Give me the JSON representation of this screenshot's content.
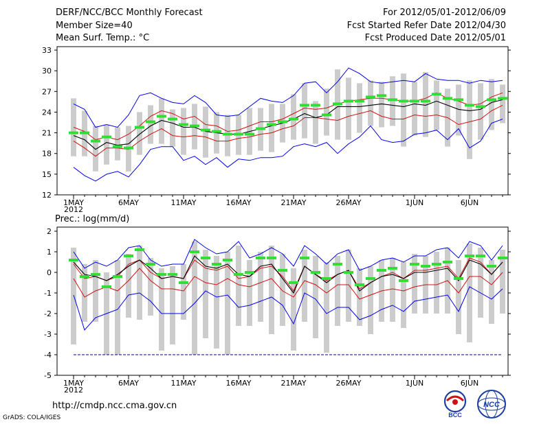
{
  "header": {
    "title": "DERF/NCC/BCC Monthly Forecast",
    "member_size": "Member Size=40",
    "variable": "Mean Surf. Temp.: °C",
    "period": "For 2012/05/01-2012/06/09",
    "started": "Fcst Started Refer Date 2012/04/30",
    "produced": "Fcst Produced Date 2012/05/01"
  },
  "colors": {
    "envelope": "#0000ee",
    "quartile": "#d01010",
    "median": "#000000",
    "ensemble_mean_marker": "#33dd33",
    "range_bar": "#cccccc",
    "reference_line": "#000080"
  },
  "footer": {
    "url": "http://cmdp.ncc.cma.gov.cn",
    "credit": "GrADS: COLA/IGES",
    "logo_left_text": "BCC",
    "logo_right_text": "NCC"
  },
  "chart_data": [
    {
      "type": "line",
      "title": "Mean Surf. Temp.: °C",
      "xlabel": "",
      "ylabel": "",
      "x_tick_labels": [
        "1MAY",
        "6MAY",
        "11MAY",
        "16MAY",
        "21MAY",
        "26MAY",
        "1JUN",
        "6JUN"
      ],
      "x_tick_days": [
        1,
        6,
        11,
        16,
        21,
        26,
        32,
        37
      ],
      "year_label": "2012",
      "ylim": [
        12,
        33.5
      ],
      "y_ticks": [
        12,
        15,
        18,
        21,
        24,
        27,
        30,
        33
      ],
      "days": [
        1,
        2,
        3,
        4,
        5,
        6,
        7,
        8,
        9,
        10,
        11,
        12,
        13,
        14,
        15,
        16,
        17,
        18,
        19,
        20,
        21,
        22,
        23,
        24,
        25,
        26,
        27,
        28,
        29,
        30,
        31,
        32,
        33,
        34,
        35,
        36,
        37,
        38,
        39,
        40
      ],
      "series": [
        {
          "name": "max",
          "values": [
            16,
            14.8,
            14,
            15,
            15.4,
            14.6,
            16.4,
            18.6,
            19,
            19,
            17,
            17.6,
            16.4,
            17.4,
            16,
            17.2,
            17,
            17.4,
            17.4,
            17.6,
            19,
            19.4,
            19,
            19.6,
            18,
            19.4,
            20.4,
            22,
            20,
            19.6,
            19.8,
            20.8,
            21,
            21.4,
            20,
            21.6,
            18.8,
            19.8,
            22.4,
            23
          ]
        },
        {
          "name": "q3",
          "values": [
            19.8,
            18.8,
            17.6,
            18.8,
            18.8,
            18.6,
            19.8,
            20.8,
            21.6,
            20.6,
            20.4,
            20.6,
            20.4,
            19.8,
            19.8,
            20.2,
            20.4,
            20.8,
            21,
            21.6,
            22,
            23.2,
            23.2,
            23,
            22.8,
            23.4,
            23.8,
            24.2,
            23.4,
            23,
            23,
            23.6,
            23.4,
            23.6,
            23.2,
            22.2,
            22.6,
            23,
            24.2,
            25
          ]
        },
        {
          "name": "median",
          "values": [
            20.6,
            20,
            18.6,
            19.6,
            19.2,
            19.4,
            20.8,
            22,
            22.8,
            22.4,
            21.8,
            21.8,
            21.2,
            21,
            20.8,
            20.8,
            21.2,
            21.6,
            22,
            22.4,
            23,
            23.8,
            23.2,
            23.6,
            24.8,
            24.8,
            24.8,
            25,
            25.2,
            25,
            24.8,
            25.2,
            25,
            25.6,
            25,
            24.4,
            24.2,
            24.4,
            25.4,
            25.8
          ]
        },
        {
          "name": "q1",
          "values": [
            21.8,
            21.2,
            20,
            20.4,
            20,
            20.8,
            22,
            23.4,
            24.2,
            23.8,
            23,
            23.4,
            22.2,
            22,
            21.2,
            21.4,
            22,
            22.6,
            22.6,
            23,
            23.8,
            24.6,
            24.4,
            24.6,
            25.2,
            25.6,
            25.8,
            26,
            26,
            25.8,
            25.6,
            25.6,
            26,
            26.8,
            26,
            25.6,
            25,
            25.2,
            26.2,
            26.8
          ]
        },
        {
          "name": "min",
          "values": [
            25.2,
            24.4,
            21.8,
            22.2,
            21.8,
            23.6,
            26.4,
            26.8,
            26,
            25.4,
            25.2,
            26.4,
            25.4,
            23.6,
            23.4,
            23.6,
            24.8,
            26,
            25.6,
            25.4,
            26.4,
            28.2,
            28.4,
            26.8,
            28.4,
            30.4,
            29.6,
            28.4,
            28.2,
            28.4,
            28.6,
            28.4,
            29.6,
            28.8,
            28.6,
            28.6,
            28.2,
            28.6,
            28.4,
            28.6
          ]
        },
        {
          "name": "ensemble_mean",
          "values": [
            21,
            21,
            19.8,
            20.4,
            19,
            18.8,
            21.8,
            22.6,
            23.4,
            23,
            22.2,
            22,
            21.4,
            21.2,
            20.8,
            20.8,
            20.8,
            21.6,
            22.2,
            22.6,
            23,
            25,
            25,
            23.6,
            25.2,
            25.6,
            25.6,
            26.2,
            26.4,
            25.8,
            25.6,
            25.6,
            25.6,
            26.6,
            26,
            25.8,
            25,
            24.8,
            25.8,
            26
          ]
        },
        {
          "name": "range_bar_low",
          "values": [
            17.6,
            17.6,
            15.4,
            16.4,
            17,
            15.4,
            17.8,
            19.4,
            19.4,
            19,
            17.8,
            18.6,
            17.4,
            18,
            17.6,
            17.8,
            17.8,
            18.4,
            18.2,
            19.6,
            20,
            20.2,
            19.4,
            20.6,
            20,
            20,
            21,
            22,
            21.8,
            22,
            19,
            20.6,
            20.4,
            21.4,
            19,
            20.6,
            17.2,
            20,
            21.4,
            22.4
          ]
        },
        {
          "name": "range_bar_high",
          "values": [
            26,
            24.2,
            22,
            22.2,
            21.8,
            22,
            24,
            25,
            26,
            24.4,
            24.6,
            25.2,
            24.8,
            24,
            23.6,
            23.6,
            24.6,
            24.6,
            25.2,
            25.2,
            26.6,
            28.2,
            25.6,
            27.4,
            30.2,
            29,
            28.2,
            28.6,
            28.4,
            29.2,
            29.6,
            28.4,
            29.8,
            28.6,
            27.4,
            28,
            28.6,
            28.2,
            28.8,
            28
          ]
        }
      ]
    },
    {
      "type": "line",
      "title": "Prec.: log(mm/d)",
      "xlabel": "",
      "ylabel": "",
      "x_tick_labels": [
        "1MAY",
        "6MAY",
        "11MAY",
        "16MAY",
        "21MAY",
        "26MAY",
        "1JUN",
        "6JUN"
      ],
      "x_tick_days": [
        1,
        6,
        11,
        16,
        21,
        26,
        32,
        37
      ],
      "year_label": "2012",
      "ylim": [
        -5,
        2.2
      ],
      "y_ticks": [
        -5,
        -4,
        -3,
        -2,
        -1,
        0,
        1,
        2
      ],
      "reference_line": -4,
      "days": [
        1,
        2,
        3,
        4,
        5,
        6,
        7,
        8,
        9,
        10,
        11,
        12,
        13,
        14,
        15,
        16,
        17,
        18,
        19,
        20,
        21,
        22,
        23,
        24,
        25,
        26,
        27,
        28,
        29,
        30,
        31,
        32,
        33,
        34,
        35,
        36,
        37,
        38,
        39,
        40
      ],
      "series": [
        {
          "name": "max",
          "values": [
            1,
            0.2,
            0.5,
            0.3,
            0.6,
            1.2,
            1.3,
            0.6,
            0.3,
            0.4,
            0.4,
            1.6,
            1.2,
            0.9,
            1,
            1.5,
            0.7,
            0.9,
            1.2,
            0.9,
            0.3,
            1.3,
            0.9,
            0.4,
            0.9,
            1.1,
            0.1,
            0.3,
            0.6,
            0.7,
            0.5,
            0.8,
            0.8,
            1.1,
            1.2,
            0.7,
            1.5,
            1.3,
            0.6,
            1.3
          ]
        },
        {
          "name": "q3",
          "values": [
            0.4,
            -0.3,
            -0.2,
            -0.4,
            -0.2,
            0.4,
            0.6,
            0,
            -0.3,
            -0.2,
            -0.3,
            0.6,
            0.2,
            0.1,
            0.3,
            -0.3,
            -0.2,
            0.2,
            0.3,
            -0.2,
            -0.9,
            0.3,
            -0.1,
            -0.4,
            -0.1,
            0.1,
            -0.8,
            -0.5,
            -0.2,
            0,
            -0.3,
            0.1,
            0.1,
            0.2,
            0.3,
            -0.3,
            0.7,
            0.5,
            -0.1,
            0.5
          ]
        },
        {
          "name": "median",
          "values": [
            0.5,
            -0.1,
            -0.2,
            -0.4,
            -0.1,
            0.3,
            0.6,
            0.2,
            -0.3,
            -0.2,
            -0.3,
            0.8,
            0.3,
            0.2,
            0.4,
            -0.1,
            -0.2,
            0.3,
            0.4,
            -0.3,
            -1,
            0.3,
            -0.1,
            -0.5,
            -0.1,
            0.1,
            -0.9,
            -0.5,
            -0.2,
            -0.1,
            -0.3,
            0,
            0,
            0.1,
            0.2,
            -0.4,
            0.6,
            0.4,
            -0.1,
            0.5
          ]
        },
        {
          "name": "q1",
          "values": [
            -0.3,
            -1.2,
            -0.9,
            -0.7,
            -0.9,
            -0.4,
            0.2,
            -0.4,
            -0.8,
            -0.8,
            -0.9,
            -0.2,
            -0.5,
            -0.6,
            -0.3,
            -0.6,
            -0.7,
            -0.5,
            -0.3,
            -0.9,
            -1.2,
            -0.4,
            -0.6,
            -1,
            -0.6,
            -0.6,
            -1.3,
            -1.1,
            -0.9,
            -0.8,
            -0.9,
            -0.7,
            -0.6,
            -0.6,
            -0.4,
            -1,
            -0.2,
            -0.2,
            -0.6,
            0
          ]
        },
        {
          "name": "min",
          "values": [
            -1.1,
            -2.8,
            -2.2,
            -2,
            -1.8,
            -1.1,
            -1,
            -1.4,
            -2,
            -2,
            -2,
            -1.5,
            -0.9,
            -1.2,
            -1.1,
            -1.7,
            -1.6,
            -1.4,
            -1.2,
            -1.6,
            -2.5,
            -1,
            -1.3,
            -2,
            -1.7,
            -1.7,
            -2.3,
            -2.1,
            -1.8,
            -1.6,
            -1.9,
            -1.4,
            -1.3,
            -1.2,
            -1.1,
            -1.9,
            -0.7,
            -1,
            -1.3,
            -0.8
          ]
        },
        {
          "name": "ensemble_mean",
          "values": [
            0.6,
            -0.2,
            -0.1,
            -0.7,
            -0.2,
            0.8,
            1.1,
            0.4,
            -0.1,
            -0.1,
            -0.5,
            1,
            0.7,
            0.4,
            0.6,
            -0.1,
            0,
            0.7,
            0.7,
            0.1,
            -0.5,
            0.7,
            0,
            -0.3,
            0.4,
            0,
            -0.6,
            -0.3,
            0.1,
            0.2,
            -0.4,
            0.4,
            0.3,
            0.4,
            0.5,
            -0.3,
            0.8,
            0.8,
            0.3,
            0.7
          ]
        },
        {
          "name": "range_bar_low",
          "values": [
            -3.5,
            -2.4,
            -2.4,
            -4,
            -4,
            -2.2,
            -2.3,
            -2.1,
            -3.8,
            -3.5,
            -2.3,
            -4,
            -3.2,
            -3.7,
            -4,
            -2.6,
            -2.6,
            -2.4,
            -3,
            -2.6,
            -3.8,
            -2.4,
            -3.2,
            -3.9,
            -2.6,
            -2.4,
            -2.6,
            -3,
            -2.4,
            -2.4,
            -2.7,
            -2,
            -2,
            -2,
            -2,
            -3,
            -3.4,
            -2.2,
            -2.5,
            -2
          ]
        },
        {
          "name": "range_bar_high",
          "values": [
            1.2,
            0.4,
            0.6,
            0,
            0.6,
            0.9,
            1.3,
            0.7,
            0.2,
            0.3,
            0.4,
            1.5,
            1.1,
            0.8,
            1,
            1.3,
            0.6,
            1,
            1.3,
            0.9,
            0.2,
            1.1,
            0.8,
            0.5,
            0.8,
            1.1,
            0.2,
            0.3,
            0.6,
            0.7,
            0.5,
            0.9,
            0.8,
            1,
            1.2,
            0.6,
            1.4,
            1.2,
            0.6,
            1.1
          ]
        }
      ]
    }
  ]
}
